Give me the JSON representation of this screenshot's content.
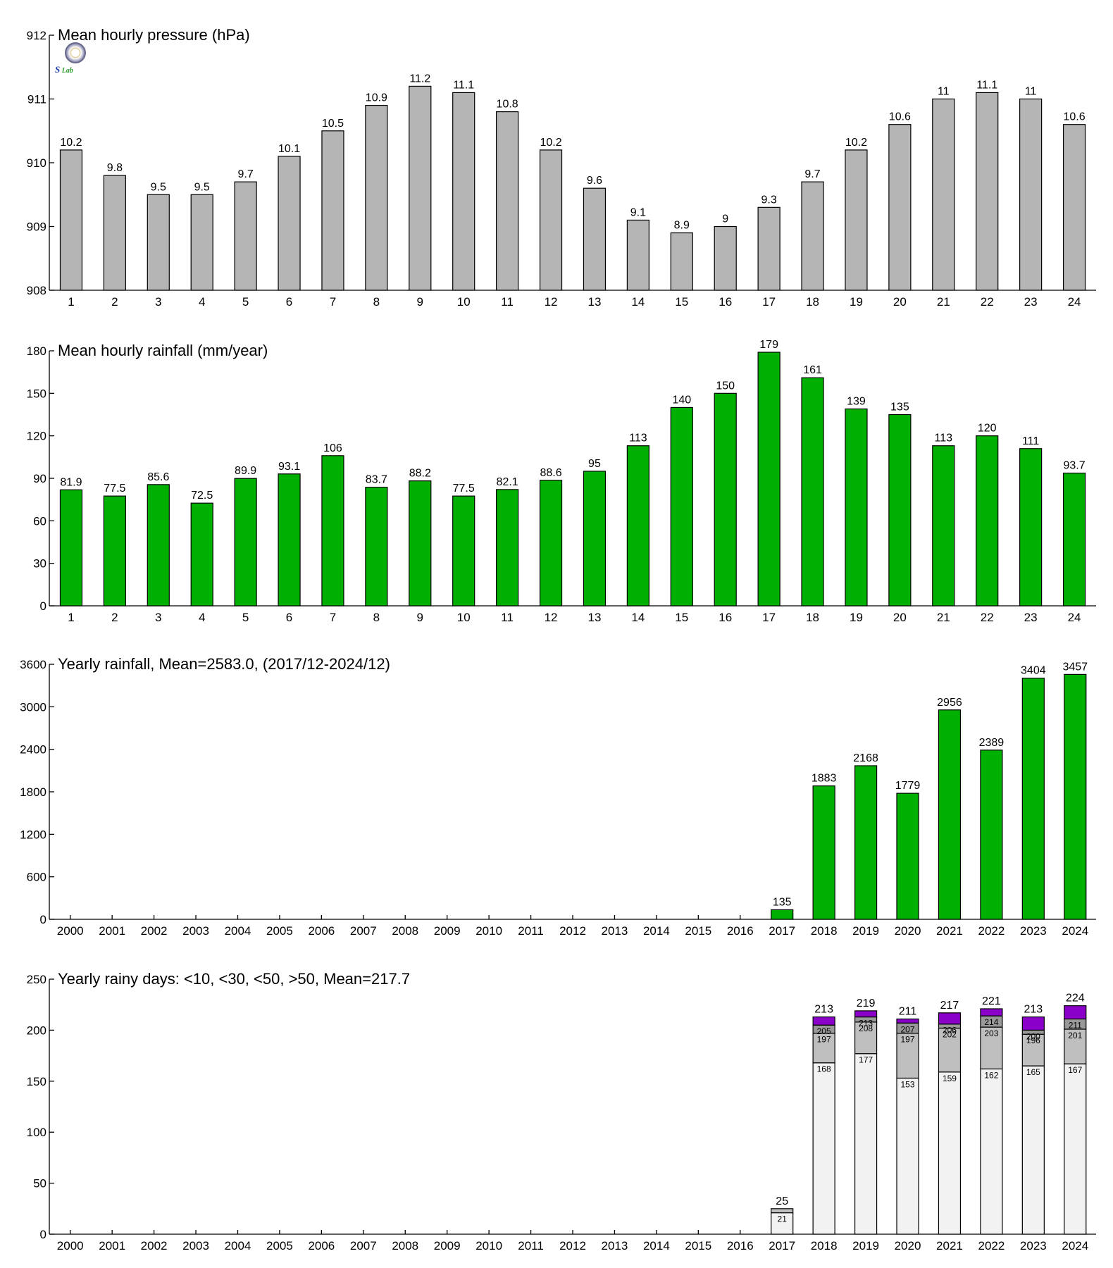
{
  "logo": {
    "icon": "lab-seal-icon",
    "letter": "S",
    "word": "Lab"
  },
  "colors": {
    "gray": "#b5b5b5",
    "green": "#00b000",
    "light": "#f2f2f2",
    "mid": "#bfbfbf",
    "dark": "#999999",
    "purple": "#8a00c8"
  },
  "chart_data": [
    {
      "type": "bar",
      "title": "Mean hourly pressure (hPa)",
      "categories": [
        "1",
        "2",
        "3",
        "4",
        "5",
        "6",
        "7",
        "8",
        "9",
        "10",
        "11",
        "12",
        "13",
        "14",
        "15",
        "16",
        "17",
        "18",
        "19",
        "20",
        "21",
        "22",
        "23",
        "24"
      ],
      "values": [
        910.2,
        909.8,
        909.5,
        909.5,
        909.7,
        910.1,
        910.5,
        910.9,
        911.2,
        911.1,
        910.8,
        910.2,
        909.6,
        909.1,
        908.9,
        909.0,
        909.3,
        909.7,
        910.2,
        910.6,
        911.0,
        911.1,
        911.0,
        910.6
      ],
      "labels": [
        "10.2",
        "9.8",
        "9.5",
        "9.5",
        "9.7",
        "10.1",
        "10.5",
        "10.9",
        "11.2",
        "11.1",
        "10.8",
        "10.2",
        "9.6",
        "9.1",
        "8.9",
        "9",
        "9.3",
        "9.7",
        "10.2",
        "10.6",
        "11",
        "11.1",
        "11",
        "10.6"
      ],
      "ylim": [
        908,
        912
      ],
      "yticks": [
        908,
        909,
        910,
        911,
        912
      ],
      "color": "#b5b5b5"
    },
    {
      "type": "bar",
      "title": "Mean hourly rainfall (mm/year)",
      "categories": [
        "1",
        "2",
        "3",
        "4",
        "5",
        "6",
        "7",
        "8",
        "9",
        "10",
        "11",
        "12",
        "13",
        "14",
        "15",
        "16",
        "17",
        "18",
        "19",
        "20",
        "21",
        "22",
        "23",
        "24"
      ],
      "values": [
        81.9,
        77.5,
        85.6,
        72.5,
        89.9,
        93.1,
        106,
        83.7,
        88.2,
        77.5,
        82.1,
        88.6,
        95,
        113,
        140,
        150,
        179,
        161,
        139,
        135,
        113,
        120,
        111,
        93.7
      ],
      "labels": [
        "81.9",
        "77.5",
        "85.6",
        "72.5",
        "89.9",
        "93.1",
        "106",
        "83.7",
        "88.2",
        "77.5",
        "82.1",
        "88.6",
        "95",
        "113",
        "140",
        "150",
        "179",
        "161",
        "139",
        "135",
        "113",
        "120",
        "111",
        "93.7"
      ],
      "ylim": [
        0,
        180
      ],
      "yticks": [
        0,
        30,
        60,
        90,
        120,
        150,
        180
      ],
      "color": "#00b000"
    },
    {
      "type": "bar",
      "title": "Yearly rainfall, Mean=2583.0, (2017/12-2024/12)",
      "categories": [
        "2000",
        "2001",
        "2002",
        "2003",
        "2004",
        "2005",
        "2006",
        "2007",
        "2008",
        "2009",
        "2010",
        "2011",
        "2012",
        "2013",
        "2014",
        "2015",
        "2016",
        "2017",
        "2018",
        "2019",
        "2020",
        "2021",
        "2022",
        "2023",
        "2024"
      ],
      "values": [
        null,
        null,
        null,
        null,
        null,
        null,
        null,
        null,
        null,
        null,
        null,
        null,
        null,
        null,
        null,
        null,
        null,
        135,
        1883,
        2168,
        1779,
        2956,
        2389,
        3404,
        3457
      ],
      "labels": [
        "",
        "",
        "",
        "",
        "",
        "",
        "",
        "",
        "",
        "",
        "",
        "",
        "",
        "",
        "",
        "",
        "",
        "135",
        "1883",
        "2168",
        "1779",
        "2956",
        "2389",
        "3404",
        "3457"
      ],
      "ylim": [
        0,
        3600
      ],
      "yticks": [
        0,
        600,
        1200,
        1800,
        2400,
        3000,
        3600
      ],
      "color": "#00b000"
    },
    {
      "type": "bar",
      "stacked": true,
      "title": "Yearly rainy days: <10, <30, <50, >50, Mean=217.7",
      "categories": [
        "2000",
        "2001",
        "2002",
        "2003",
        "2004",
        "2005",
        "2006",
        "2007",
        "2008",
        "2009",
        "2010",
        "2011",
        "2012",
        "2013",
        "2014",
        "2015",
        "2016",
        "2017",
        "2018",
        "2019",
        "2020",
        "2021",
        "2022",
        "2023",
        "2024"
      ],
      "stack_start": 17,
      "cumulative": [
        [
          21,
          25,
          25,
          25
        ],
        [
          168,
          197,
          205,
          213
        ],
        [
          177,
          208,
          213,
          219
        ],
        [
          153,
          197,
          207,
          211
        ],
        [
          159,
          202,
          206,
          217
        ],
        [
          162,
          203,
          214,
          221
        ],
        [
          165,
          196,
          200,
          213
        ],
        [
          167,
          201,
          211,
          224
        ]
      ],
      "segment_labels": [
        [
          "21",
          "25",
          "",
          "25"
        ],
        [
          "168",
          "197",
          "205",
          "213"
        ],
        [
          "177",
          "208",
          "213",
          "219"
        ],
        [
          "153",
          "197",
          "207",
          "211"
        ],
        [
          "159",
          "202",
          "206",
          "217"
        ],
        [
          "162",
          "203",
          "214",
          "221"
        ],
        [
          "165",
          "196",
          "200",
          "213"
        ],
        [
          "167",
          "201",
          "211",
          "224"
        ]
      ],
      "ylim": [
        0,
        250
      ],
      "yticks": [
        0,
        50,
        100,
        150,
        200,
        250
      ],
      "colors": [
        "#f2f2f2",
        "#bfbfbf",
        "#999999",
        "#8a00c8"
      ]
    }
  ]
}
